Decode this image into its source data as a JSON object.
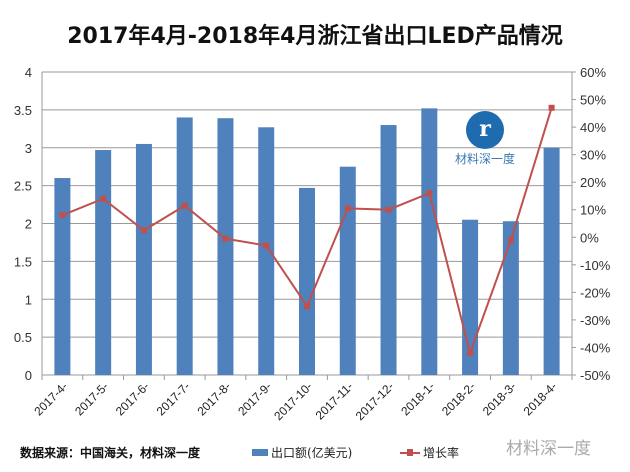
{
  "chart_data": {
    "type": "bar+line",
    "title": "2017年4月-2018年4月浙江省出口LED产品情况",
    "categories": [
      "2017-4-",
      "2017-5-",
      "2017-6-",
      "2017-7-",
      "2017-8-",
      "2017-9-",
      "2017-10-",
      "2017-11-",
      "2017-12-",
      "2018-1-",
      "2018-2-",
      "2018-3-",
      "2018-4-"
    ],
    "series": [
      {
        "name": "出口额(亿美元)",
        "type": "bar",
        "axis": "left",
        "color": "#4f81bd",
        "values": [
          2.6,
          2.97,
          3.05,
          3.4,
          3.39,
          3.27,
          2.47,
          2.75,
          3.3,
          3.52,
          2.05,
          2.03,
          3.0
        ]
      },
      {
        "name": "增长率",
        "type": "line",
        "axis": "right",
        "color": "#c0504d",
        "values": [
          8,
          14,
          2.5,
          11.5,
          -0.5,
          -3,
          -25,
          10.5,
          10,
          16,
          -42,
          -1,
          47
        ]
      }
    ],
    "yleft": {
      "range": [
        0,
        4
      ],
      "ticks": [
        "0",
        "0.5",
        "1",
        "1.5",
        "2",
        "2.5",
        "3",
        "3.5",
        "4"
      ]
    },
    "yright": {
      "range": [
        -50,
        60
      ],
      "ticks": [
        "-50%",
        "-40%",
        "-30%",
        "-20%",
        "-10%",
        "0%",
        "10%",
        "20%",
        "30%",
        "40%",
        "50%",
        "60%"
      ]
    },
    "grid": true,
    "legend": "bottom"
  },
  "source": "数据来源：中国海关，材料深一度",
  "watermark": "材料深一度",
  "logo_text": "材料深一度"
}
